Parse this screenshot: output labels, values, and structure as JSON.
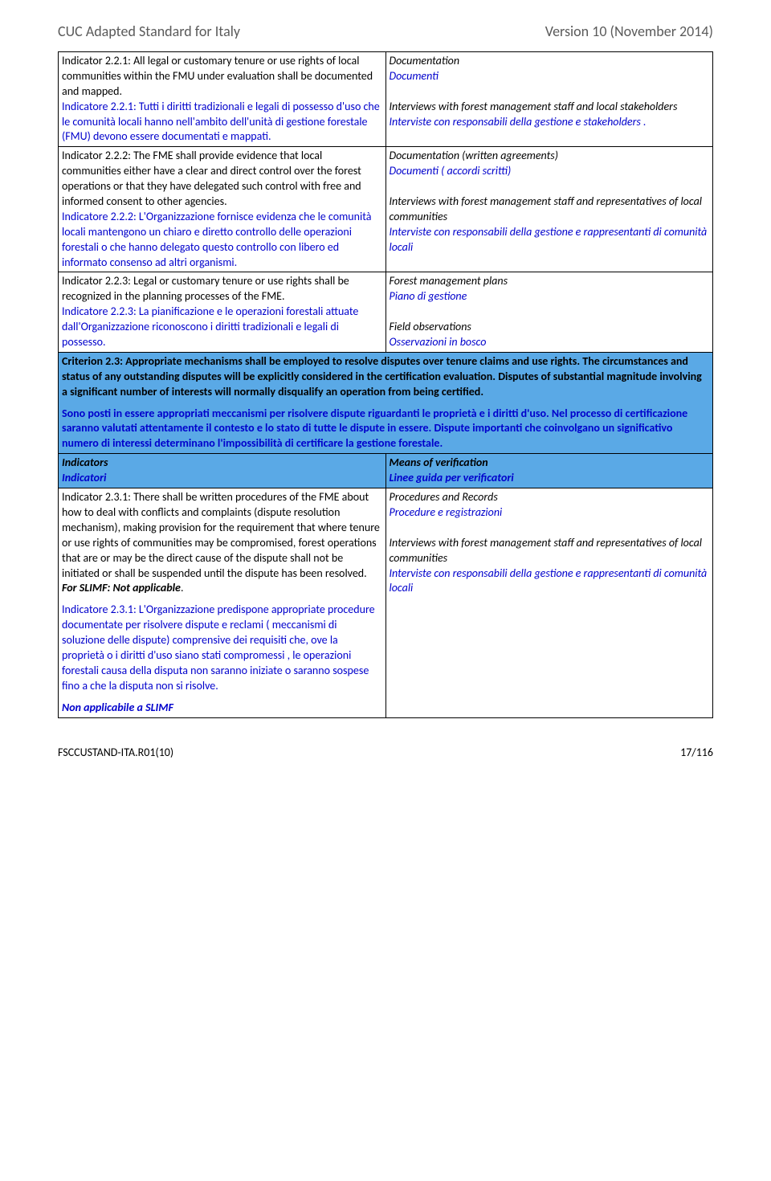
{
  "header": {
    "left": "CUC Adapted Standard for Italy",
    "right": "Version 10 (November  2014)"
  },
  "rows": {
    "r1": {
      "left_black": "Indicator 2.2.1: All legal or customary tenure or use rights of local communities within the FMU under evaluation shall be documented and mapped.",
      "left_blue": "Indicatore 2.2.1: Tutti i diritti tradizionali e legali di possesso d'uso che le comunità locali hanno nell'ambito dell'unità di gestione forestale (FMU) devono essere documentati e mappati.",
      "right_l1": "Documentation",
      "right_l2": "Documenti",
      "right_l3": "Interviews with forest management staff and local stakeholders",
      "right_l4": "Interviste con responsabili della gestione e stakeholders ."
    },
    "r2": {
      "left_black": "Indicator 2.2.2: The FME shall provide evidence that local communities either have a clear and direct control over the forest operations or that they have delegated such control with free and informed consent to other agencies.",
      "left_blue": "Indicatore 2.2.2: L'Organizzazione fornisce evidenza che le comunità locali mantengono un chiaro e diretto controllo delle operazioni forestali o che hanno delegato questo controllo con libero ed informato consenso ad altri organismi.",
      "right_l1": "Documentation (written agreements)",
      "right_l2": "Documenti ( accordi scritti)",
      "right_l3": "Interviews with forest management staff and representatives of local communities",
      "right_l4": "Interviste con responsabili della gestione e rappresentanti di comunità locali"
    },
    "r3": {
      "left_black": "Indicator 2.2.3: Legal or customary tenure or use rights shall be recognized in the planning processes of the FME.",
      "left_blue": "Indicatore 2.2.3: La pianificazione e le operazioni forestali attuate dall'Organizzazione riconoscono i diritti tradizionali e legali di possesso.",
      "right_l1": "Forest management plans",
      "right_l2": "Piano di gestione",
      "right_l3": "Field observations",
      "right_l4": "Osservazioni in bosco"
    },
    "criterion": {
      "p1": "Criterion 2.3: Appropriate mechanisms shall be employed to resolve disputes over tenure claims and use rights. The circumstances and status of any outstanding disputes will be explicitly considered in the certification evaluation. Disputes of substantial magnitude involving a significant number of interests will normally disqualify an operation from being certified.",
      "p2": "Sono posti in essere appropriati meccanismi per risolvere dispute riguardanti le proprietà e i diritti d'uso. Nel processo di certificazione saranno valutati attentamente il contesto e lo stato di tutte le dispute in essere. Dispute importanti che coinvolgano un significativo numero di interessi determinano l'impossibilità di certificare la gestione forestale."
    },
    "ind_header": {
      "left_l1": "Indicators",
      "left_l2": "Indicatori",
      "right_l1": "Means of verification",
      "right_l2": "Linee guida per verificatori"
    },
    "r4": {
      "left_black": "Indicator 2.3.1: There shall be written procedures of the FME about how to deal with conflicts and complaints (dispute resolution mechanism), making provision for the requirement that where tenure or use rights of communities may be compromised, forest operations that are or may be the direct cause of the dispute shall not be initiated or shall be suspended until the dispute has been resolved.",
      "left_slimf": " For SLIMF: Not applicable",
      "left_blue": "Indicatore 2.3.1: L'Organizzazione predispone appropriate procedure documentate per risolvere dispute e reclami ( meccanismi di soluzione delle dispute) comprensive dei requisiti che, ove la proprietà o i diritti d'uso siano stati compromessi , le operazioni forestali causa della disputa non saranno  iniziate  o saranno  sospese fino a che la disputa non si risolve.",
      "left_na": "Non applicabile a SLIMF",
      "right_l1": "Procedures and Records",
      "right_l2": "Procedure e registrazioni",
      "right_l3": "Interviews with forest management staff and representatives of local communities",
      "right_l4": "Interviste con responsabili della gestione e rappresentanti di comunità locali"
    }
  },
  "footer": {
    "left": "FSCCUSTAND-ITA.R01(10)",
    "right": "17/116"
  },
  "colors": {
    "highlight": "#5aa9e6",
    "blue_text": "#0000cc",
    "header_gray": "#5a5a5a"
  }
}
